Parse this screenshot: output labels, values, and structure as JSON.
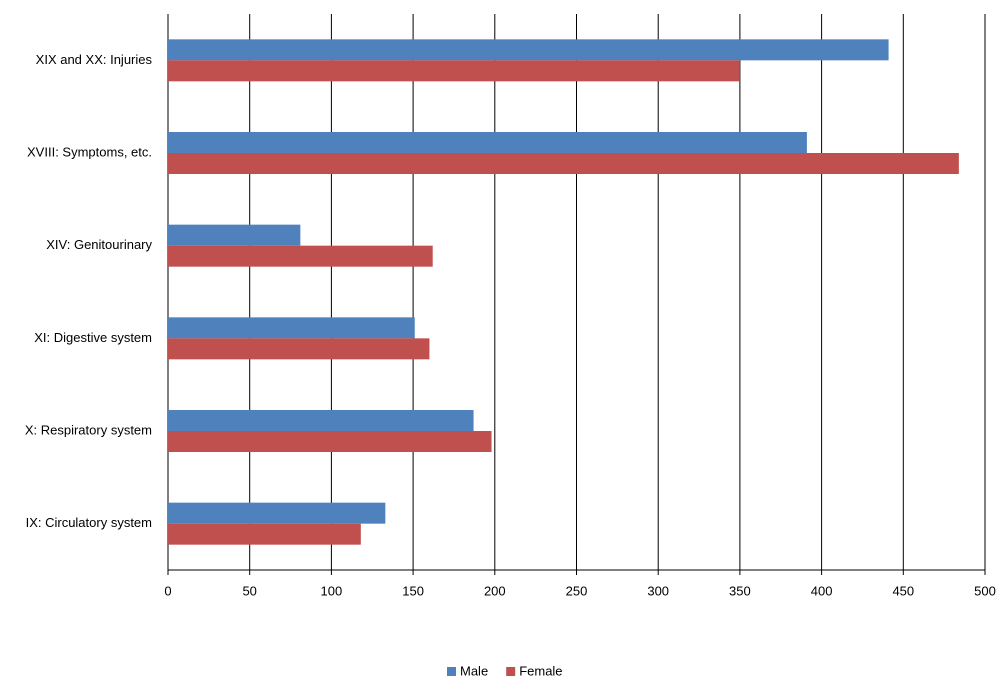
{
  "chart_data": {
    "type": "hbar",
    "categories": [
      "XIX and XX: Injuries",
      "XVIII: Symptoms, etc.",
      "XIV: Genitourinary",
      "XI: Digestive system",
      "X: Respiratory system",
      "IX: Circulatory system"
    ],
    "series": [
      {
        "name": "Male",
        "color": "#4f81bd",
        "values": [
          441,
          391,
          81,
          151,
          187,
          133
        ]
      },
      {
        "name": "Female",
        "color": "#c0504d",
        "values": [
          350,
          484,
          162,
          160,
          198,
          118
        ]
      }
    ],
    "xlim": [
      0,
      500
    ],
    "xticks": [
      0,
      50,
      100,
      150,
      200,
      250,
      300,
      350,
      400,
      450,
      500
    ],
    "grid": true,
    "legend": "bottom"
  }
}
